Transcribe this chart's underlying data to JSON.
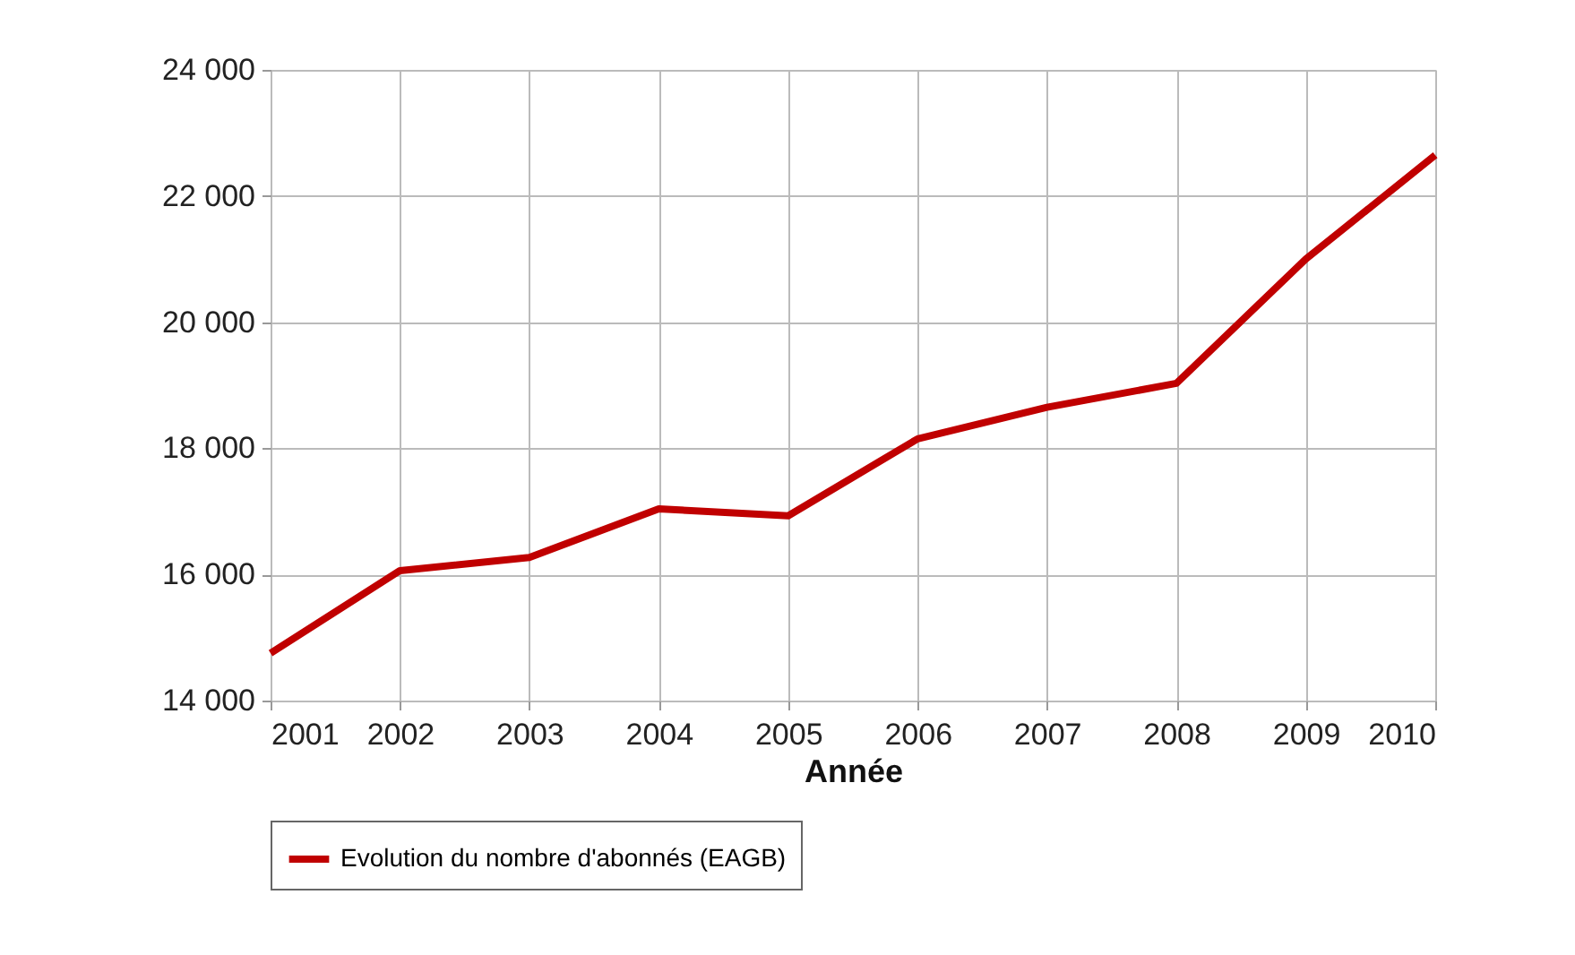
{
  "chart_data": {
    "type": "line",
    "xlabel": "Année",
    "categories": [
      "2001",
      "2002",
      "2003",
      "2004",
      "2005",
      "2006",
      "2007",
      "2008",
      "2009",
      "2010"
    ],
    "series": [
      {
        "name": "Evolution du nombre d'abonnés (EAGB)",
        "color": "#c00000",
        "values": [
          14750,
          16060,
          16270,
          17040,
          16930,
          18150,
          18650,
          19030,
          21000,
          22650
        ]
      }
    ],
    "ylim": [
      14000,
      24000
    ],
    "yticks": [
      {
        "value": 14000,
        "label": "14 000"
      },
      {
        "value": 16000,
        "label": "16 000"
      },
      {
        "value": 18000,
        "label": "18 000"
      },
      {
        "value": 20000,
        "label": "20 000"
      },
      {
        "value": 22000,
        "label": "22 000"
      },
      {
        "value": 24000,
        "label": "24 000"
      }
    ],
    "grid": true,
    "legend": "bottom",
    "marker": "none",
    "line_style": "solid"
  }
}
